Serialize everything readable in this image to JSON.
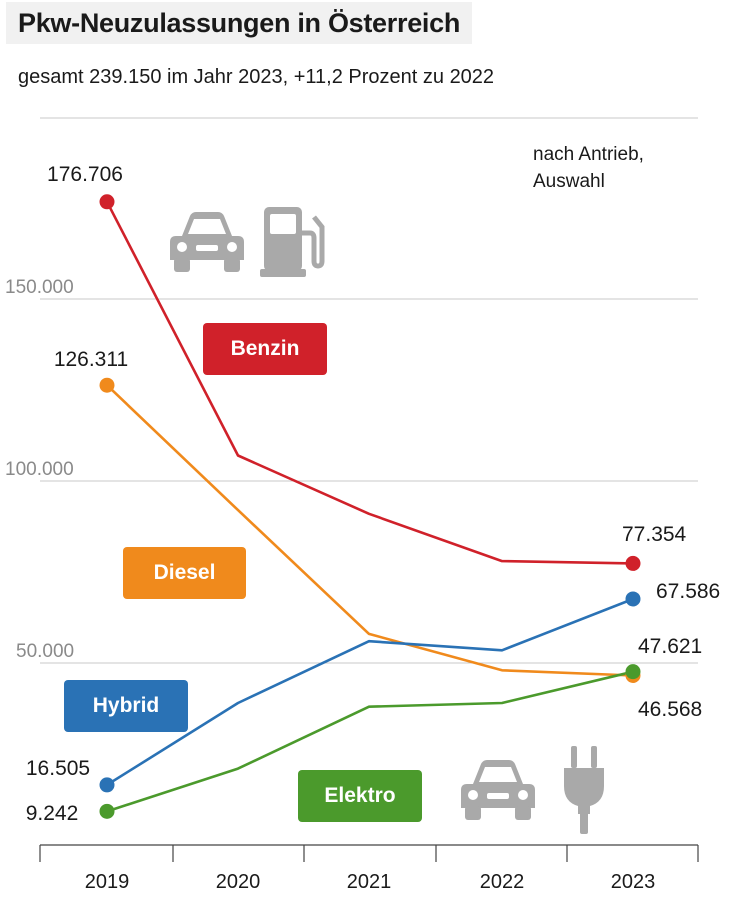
{
  "header": {
    "title": "Pkw-Neuzulassungen in Österreich",
    "subtitle": "gesamt 239.150 im Jahr 2023, +11,2 Prozent zu 2022",
    "note_line1": "nach Antrieb,",
    "note_line2": "Auswahl"
  },
  "chart_data": {
    "type": "line",
    "x": [
      "2019",
      "2020",
      "2021",
      "2022",
      "2023"
    ],
    "ylim": [
      0,
      200000
    ],
    "yticks": [
      50000,
      100000,
      150000
    ],
    "ytick_labels": [
      "50.000",
      "100.000",
      "150.000"
    ],
    "grid": true,
    "series": [
      {
        "name": "Benzin",
        "color": "#d0212a",
        "values": [
          176706,
          107000,
          91000,
          78000,
          77354
        ],
        "first_label": "176.706",
        "last_label": "77.354"
      },
      {
        "name": "Diesel",
        "color": "#f08a1c",
        "values": [
          126311,
          92000,
          58000,
          48000,
          46568
        ],
        "first_label": "126.311",
        "last_label": "46.568"
      },
      {
        "name": "Hybrid",
        "color": "#2a72b5",
        "values": [
          16505,
          39000,
          56000,
          53500,
          67586
        ],
        "first_label": "16.505",
        "last_label": "67.586"
      },
      {
        "name": "Elektro",
        "color": "#4b9a2c",
        "values": [
          9242,
          21000,
          38000,
          39000,
          47621
        ],
        "first_label": "9.242",
        "last_label": "47.621"
      }
    ]
  },
  "icons": {
    "car": "car-icon",
    "fuel": "fuel-pump-icon",
    "plug": "plug-icon",
    "color": "#a9a9a9"
  }
}
